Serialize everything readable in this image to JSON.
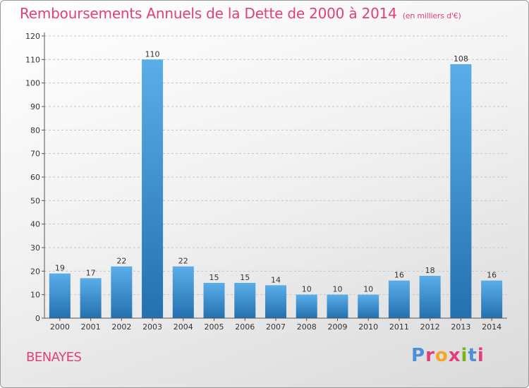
{
  "header": {
    "title": "Remboursements Annuels de la Dette de 2000 à 2014",
    "subtitle": "(en milliers d'€)"
  },
  "footer": {
    "commune": "BENAYES",
    "logo": "Proxiti"
  },
  "colors": {
    "bar_top": "#5aaee8",
    "bar_bottom": "#2470b0",
    "accent": "#e0407a",
    "logo_letters": [
      "#4a90d9",
      "#e0407a",
      "#f5a623",
      "#e0407a",
      "#7ab317",
      "#4a90d9",
      "#e0407a"
    ]
  },
  "chart_data": {
    "type": "bar",
    "title": "Remboursements Annuels de la Dette de 2000 à 2014",
    "xlabel": "",
    "ylabel": "",
    "categories": [
      "2000",
      "2001",
      "2002",
      "2003",
      "2004",
      "2005",
      "2006",
      "2007",
      "2008",
      "2009",
      "2010",
      "2011",
      "2012",
      "2013",
      "2014"
    ],
    "values": [
      19,
      17,
      22,
      110,
      22,
      15,
      15,
      14,
      10,
      10,
      10,
      16,
      18,
      108,
      16
    ],
    "ylim": [
      0,
      120
    ],
    "yticks": [
      0,
      10,
      20,
      30,
      40,
      50,
      60,
      70,
      80,
      90,
      100,
      110,
      120
    ],
    "grid": true,
    "data_labels": true
  }
}
